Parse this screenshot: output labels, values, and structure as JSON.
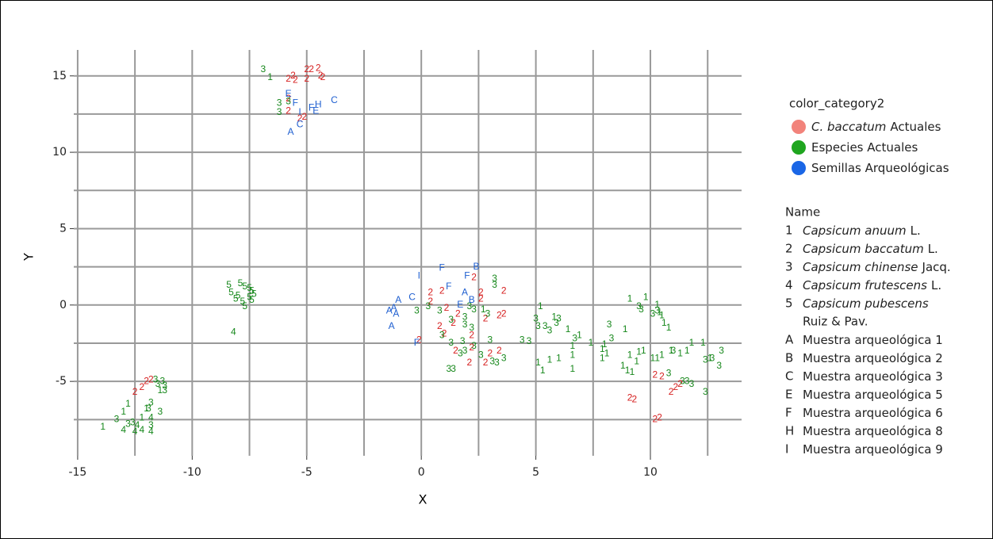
{
  "chart_data": {
    "type": "scatter",
    "xlabel": "X",
    "ylabel": "Y",
    "xlim": [
      -15.17,
      13.98
    ],
    "ylim": [
      -9.87,
      16.7
    ],
    "xticks": [
      -15,
      -10,
      -5,
      0,
      5,
      10
    ],
    "yticks": [
      -5,
      0,
      5,
      10,
      15
    ],
    "x_minor_grid": [
      -12.5,
      -7.5,
      -2.5,
      2.5,
      7.5,
      12.5
    ],
    "y_minor_grid": [
      -7.5,
      -2.5,
      2.5,
      7.5,
      12.5
    ],
    "grid": true,
    "legend_title": "color_category2",
    "series": [
      {
        "name_italic": "C. baccatum",
        "name": "Actuales",
        "color": "#d62020",
        "legend_color": "#f2837b",
        "x": [
          -5.8,
          -5.6,
          -5.0,
          -4.8,
          -5.0,
          -4.5,
          -4.4,
          -4.3,
          -5.5,
          -5.8,
          -5.8,
          -5.3,
          -5.1,
          -12.5,
          -12.2,
          -12.0,
          -11.8,
          0.4,
          0.4,
          0.9,
          1.1,
          2.3,
          2.6,
          2.6,
          3.6,
          1.4,
          0.8,
          1.0,
          2.8,
          3.4,
          3.6,
          1.6,
          -0.1,
          2.2,
          1.5,
          2.1,
          3.0,
          3.4,
          2.8,
          2.2,
          9.1,
          9.3,
          10.2,
          10.5,
          11.1,
          11.3,
          10.9,
          10.4,
          10.2
        ],
        "y": [
          14.8,
          15.0,
          15.4,
          15.4,
          14.8,
          15.5,
          15.0,
          14.9,
          14.7,
          13.5,
          12.7,
          12.2,
          12.3,
          -5.7,
          -5.4,
          -5.0,
          -4.9,
          0.2,
          0.8,
          0.9,
          -0.2,
          1.8,
          0.8,
          0.4,
          0.9,
          -1.2,
          -1.4,
          -1.9,
          -0.9,
          -0.7,
          -0.6,
          -0.6,
          -2.3,
          -2.0,
          -3.0,
          -3.8,
          -3.2,
          -3.0,
          -3.8,
          -2.8,
          -6.1,
          -6.2,
          -4.6,
          -4.7,
          -5.4,
          -5.2,
          -5.7,
          -7.4,
          -7.5
        ],
        "labels": [
          "2",
          "2",
          "2",
          "2",
          "2",
          "2",
          "2",
          "2",
          "2",
          "2",
          "2",
          "2",
          "2",
          "2",
          "2",
          "2",
          "2",
          "2",
          "2",
          "2",
          "2",
          "2",
          "2",
          "2",
          "2",
          "2",
          "2",
          "2",
          "2",
          "2",
          "2",
          "2",
          "2",
          "2",
          "2",
          "2",
          "2",
          "2",
          "2",
          "2",
          "2",
          "2",
          "2",
          "2",
          "2",
          "2",
          "2",
          "2",
          "2"
        ]
      },
      {
        "name": "Especies Actuales",
        "color": "#17881c",
        "legend_color": "#1fa51f",
        "x": [
          -6.9,
          -6.6,
          -6.2,
          -6.2,
          -5.8,
          -8.4,
          -8.3,
          -8.0,
          -7.9,
          -7.7,
          -7.5,
          -7.4,
          -7.3,
          -7.5,
          -7.8,
          -8.1,
          -7.7,
          -7.4,
          -8.2,
          -13.9,
          -13.3,
          -13.0,
          -12.8,
          -13.0,
          -12.5,
          -12.2,
          -11.8,
          -12.8,
          -12.6,
          -12.4,
          -12.2,
          -12.0,
          -11.8,
          -11.9,
          -11.4,
          -11.8,
          -11.8,
          -11.3,
          -11.5,
          -11.2,
          -11.2,
          -11.4,
          -11.6,
          -0.2,
          0.3,
          0.8,
          1.3,
          1.9,
          1.9,
          2.2,
          2.9,
          3.2,
          3.2,
          0.9,
          1.3,
          1.8,
          2.3,
          3.0,
          1.9,
          1.7,
          2.6,
          3.3,
          3.6,
          1.2,
          1.4,
          2.1,
          2.3,
          4.4,
          4.7,
          3.1,
          2.7,
          5.2,
          5.1,
          5.0,
          5.4,
          5.6,
          5.9,
          5.8,
          6.0,
          6.4,
          6.7,
          6.9,
          7.4,
          6.6,
          6.6,
          6.6,
          5.6,
          5.1,
          5.3,
          6.0,
          8.2,
          8.0,
          7.9,
          8.1,
          7.9,
          8.3,
          8.9,
          8.8,
          9.4,
          9.5,
          9.7,
          10.1,
          10.3,
          10.5,
          10.9,
          11.0,
          11.3,
          10.8,
          9.2,
          9.0,
          9.1,
          9.6,
          9.5,
          9.8,
          10.1,
          10.3,
          10.5,
          10.6,
          10.8,
          9.1,
          10.4,
          11.6,
          11.8,
          12.4,
          12.3,
          12.6,
          12.7,
          13.1,
          13.0,
          11.6,
          11.8,
          11.4,
          12.4,
          10.3
        ],
        "y": [
          15.4,
          14.9,
          13.2,
          12.6,
          13.3,
          1.3,
          0.8,
          0.6,
          1.4,
          1.2,
          1.1,
          0.9,
          0.7,
          0.5,
          0.2,
          0.4,
          -0.1,
          0.3,
          -1.8,
          -8.0,
          -7.5,
          -7.0,
          -6.5,
          -8.2,
          -8.3,
          -8.2,
          -8.3,
          -7.8,
          -7.7,
          -7.9,
          -7.4,
          -6.8,
          -6.4,
          -6.8,
          -7.0,
          -7.9,
          -7.4,
          -5.0,
          -5.2,
          -5.6,
          -5.3,
          -5.6,
          -4.9,
          -0.4,
          -0.1,
          -0.4,
          -1.0,
          -0.8,
          -1.3,
          -1.5,
          -0.6,
          1.3,
          1.7,
          -2.0,
          -2.5,
          -2.4,
          -2.7,
          -2.3,
          -3.0,
          -3.2,
          -3.3,
          -3.8,
          -3.5,
          -4.2,
          -4.2,
          -0.1,
          -0.3,
          -2.3,
          -2.4,
          -3.7,
          -0.3,
          -0.1,
          -1.4,
          -0.9,
          -1.4,
          -1.7,
          -1.2,
          -0.8,
          -0.9,
          -1.6,
          -2.2,
          -2.0,
          -2.5,
          -2.7,
          -3.3,
          -4.2,
          -3.6,
          -3.8,
          -4.3,
          -3.5,
          -1.3,
          -2.6,
          -2.9,
          -3.2,
          -3.5,
          -2.2,
          -1.6,
          -4.0,
          -3.7,
          -3.1,
          -3.0,
          -3.5,
          -3.5,
          -3.3,
          -3.0,
          -3.0,
          -3.2,
          -4.5,
          -4.4,
          -4.3,
          -3.3,
          -0.3,
          -0.1,
          0.5,
          -0.6,
          -0.4,
          -0.7,
          -1.2,
          -1.5,
          0.4,
          -0.5,
          -3.0,
          -2.5,
          -3.6,
          -2.5,
          -3.5,
          -3.5,
          -3.0,
          -4.0,
          -5.0,
          -5.2,
          -5.0,
          -5.7,
          0.0
        ],
        "labels": [
          "3",
          "1",
          "3",
          "3",
          "3",
          "5",
          "5",
          "5",
          "5",
          "5",
          "5",
          "5",
          "5",
          "5",
          "5",
          "5",
          "5",
          "5",
          "4",
          "1",
          "3",
          "1",
          "1",
          "4",
          "4",
          "4",
          "4",
          "3",
          "3",
          "4",
          "1",
          "1",
          "3",
          "3",
          "3",
          "3",
          "4",
          "3",
          "3",
          "3",
          "3",
          "1",
          "3",
          "3",
          "3",
          "3",
          "3",
          "3",
          "3",
          "3",
          "3",
          "3",
          "3",
          "3",
          "3",
          "3",
          "3",
          "3",
          "3",
          "3",
          "3",
          "3",
          "3",
          "3",
          "3",
          "3",
          "3",
          "3",
          "3",
          "3",
          "1",
          "1",
          "3",
          "3",
          "3",
          "3",
          "3",
          "1",
          "3",
          "1",
          "3",
          "1",
          "1",
          "1",
          "1",
          "1",
          "1",
          "1",
          "1",
          "1",
          "3",
          "1",
          "1",
          "1",
          "1",
          "3",
          "1",
          "1",
          "1",
          "1",
          "1",
          "1",
          "1",
          "1",
          "1",
          "3",
          "1",
          "3",
          "1",
          "1",
          "1",
          "3",
          "3",
          "1",
          "3",
          "3",
          "1",
          "1",
          "1",
          "1",
          "1",
          "1",
          "1",
          "3",
          "1",
          "1",
          "3",
          "3",
          "3",
          "3",
          "3",
          "3",
          "3",
          "1"
        ]
      },
      {
        "name": "Semillas Arqueológicas",
        "color": "#1f5fd0",
        "legend_color": "#1a66e6",
        "x": [
          -1.4,
          -1.2,
          -1.1,
          -1.0,
          -1.3,
          -0.4,
          -0.1,
          0.9,
          1.2,
          2.4,
          2.0,
          1.9,
          1.7,
          2.2,
          -0.2,
          -5.8,
          -5.5,
          -5.3,
          -4.5,
          -4.6,
          -3.8,
          -5.3,
          -5.7,
          -4.8
        ],
        "y": [
          -0.4,
          -0.2,
          -0.6,
          0.3,
          -1.4,
          0.5,
          1.9,
          2.4,
          1.2,
          2.5,
          1.9,
          0.8,
          0.0,
          0.3,
          -2.5,
          13.8,
          13.2,
          12.6,
          13.1,
          12.7,
          13.4,
          11.8,
          11.3,
          12.9
        ],
        "labels": [
          "A",
          "A",
          "A",
          "A",
          "A",
          "C",
          "I",
          "F",
          "F",
          "B",
          "F",
          "A",
          "E",
          "B",
          "F",
          "E",
          "F",
          "I",
          "H",
          "E",
          "C",
          "C",
          "A",
          "F"
        ]
      }
    ],
    "name_legend": {
      "title": "Name",
      "items": [
        {
          "key": "1",
          "italic": "Capsicum anuum",
          "text": "L."
        },
        {
          "key": "2",
          "italic": "Capsicum baccatum",
          "text": "L."
        },
        {
          "key": "3",
          "italic": "Capsicum chinense",
          "text": "Jacq."
        },
        {
          "key": "4",
          "italic": "Capsicum frutescens",
          "text": "L."
        },
        {
          "key": "5",
          "italic": "Capsicum pubescens",
          "text": "Ruiz & Pav.",
          "wrap": true
        },
        {
          "key": "A",
          "text": "Muestra arqueológica 1"
        },
        {
          "key": "B",
          "text": "Muestra arqueológica 2"
        },
        {
          "key": "C",
          "text": "Muestra arqueológica 3"
        },
        {
          "key": "E",
          "text": "Muestra arqueológica 5"
        },
        {
          "key": "F",
          "text": "Muestra arqueológica 6"
        },
        {
          "key": "H",
          "text": "Muestra arqueológica 8"
        },
        {
          "key": "I",
          "text": "Muestra arqueológica 9"
        }
      ]
    }
  }
}
